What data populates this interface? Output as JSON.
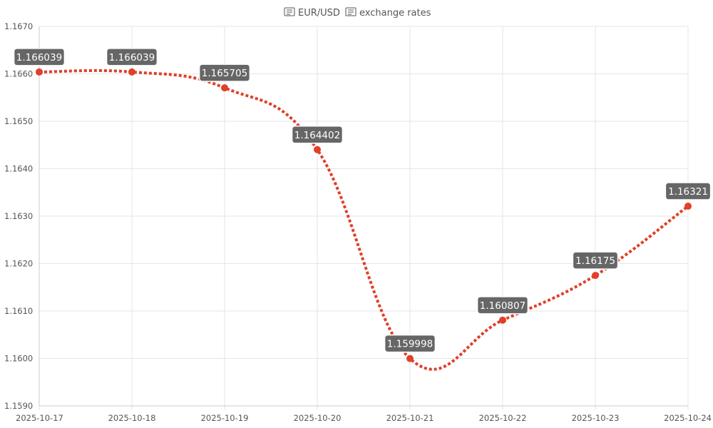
{
  "chart_data": {
    "type": "line",
    "title": "EUR/USD exchange rates",
    "title_icons": [
      "eu-flag-icon",
      "us-flag-icon"
    ],
    "title_parts": {
      "pair": "EUR/USD",
      "suffix": "exchange rates"
    },
    "x": [
      "2025-10-17",
      "2025-10-18",
      "2025-10-19",
      "2025-10-20",
      "2025-10-21",
      "2025-10-22",
      "2025-10-23",
      "2025-10-24"
    ],
    "series": [
      {
        "values": [
          1.166039,
          1.166039,
          1.165705,
          1.164402,
          1.159998,
          1.160807,
          1.16175,
          1.16321
        ],
        "labels": [
          "1.166039",
          "1.166039",
          "1.165705",
          "1.164402",
          "1.159998",
          "1.160807",
          "1.16175",
          "1.16321"
        ]
      }
    ],
    "y_ticks": [
      "1.1670",
      "1.1660",
      "1.1650",
      "1.1640",
      "1.1630",
      "1.1620",
      "1.1610",
      "1.1600",
      "1.1590"
    ],
    "ylim": [
      1.159,
      1.167
    ],
    "xlabel": "",
    "ylabel": "",
    "grid": true,
    "line_style": "dotted",
    "smooth": true,
    "colors": {
      "line": "#e0402a",
      "point": "#e0402a",
      "label_bg": "#666666",
      "label_text": "#ffffff",
      "grid": "#e6e6e6",
      "axis": "#cccccc",
      "tick_text": "#555555"
    }
  }
}
